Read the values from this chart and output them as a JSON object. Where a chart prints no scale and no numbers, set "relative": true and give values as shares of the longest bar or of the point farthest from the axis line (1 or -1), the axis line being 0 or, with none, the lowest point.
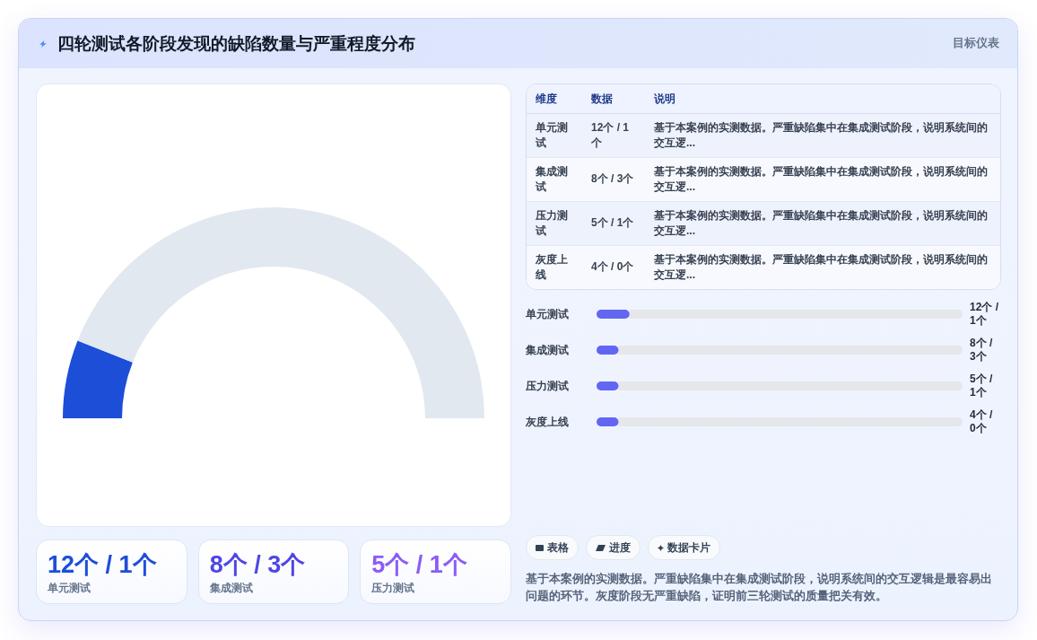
{
  "chart_data": [
    {
      "type": "other",
      "title": "四轮测试各阶段发现的缺陷数量与严重程度分布",
      "subtitle": "目标仪表"
    },
    {
      "type": "donut",
      "categories": [
        null,
        null
      ],
      "values": [
        12,
        88
      ],
      "colors": [
        "#1d4ed8",
        "#e2e8f0"
      ]
    },
    {
      "type": "other",
      "categories": [
        "维度",
        "数据",
        "说明"
      ],
      "y_categories": [
        "单元测试",
        "集成测试",
        "压力测试",
        "灰度上线"
      ],
      "cell_labels": [
        [
          "12个 / 1个",
          "基于本案例的实测数据。严重缺陷集中在集成测试阶段，说明系统间的交互逻..."
        ],
        [
          "8个 / 3个",
          "基于本案例的实测数据。严重缺陷集中在集成测试阶段，说明系统间的交互逻..."
        ],
        [
          "5个 / 1个",
          "基于本案例的实测数据。严重缺陷集中在集成测试阶段，说明系统间的交互逻..."
        ],
        [
          "4个 / 0个",
          "基于本案例的实测数据。严重缺陷集中在集成测试阶段，说明系统间的交互逻..."
        ]
      ]
    },
    {
      "type": "bar",
      "orientation": "horizontal",
      "stacked": true,
      "relative": true,
      "categories": [
        "单元测试",
        "集成测试",
        "压力测试",
        "灰度上线"
      ],
      "series": [
        {
          "color": "#6366f1",
          "values": [
            0.09,
            0.06,
            0.06,
            0.06
          ]
        },
        {
          "color": "#e5e7eb",
          "values": [
            0.91,
            0.94,
            0.94,
            0.94
          ]
        }
      ],
      "annotations": [
        "12个 / 1个",
        "8个 / 3个",
        "5个 / 1个",
        "4个 / 0个"
      ]
    },
    {
      "type": "other",
      "categories": [
        "单元测试",
        "集成测试",
        "压力测试"
      ],
      "value_labels": [
        "12个 / 1个",
        "8个 / 3个",
        "5个 / 1个"
      ]
    },
    {
      "type": "other",
      "categories": [
        "表格",
        "进度",
        "数据卡片"
      ],
      "annotations": [
        "基于本案例的实测数据。严重缺陷集中在集成测试阶段，说明系统间的交互逻辑是最容易出问题的环节。灰度阶段无严重缺陷，证明前三轮测试的质量把关有效。"
      ]
    }
  ]
}
